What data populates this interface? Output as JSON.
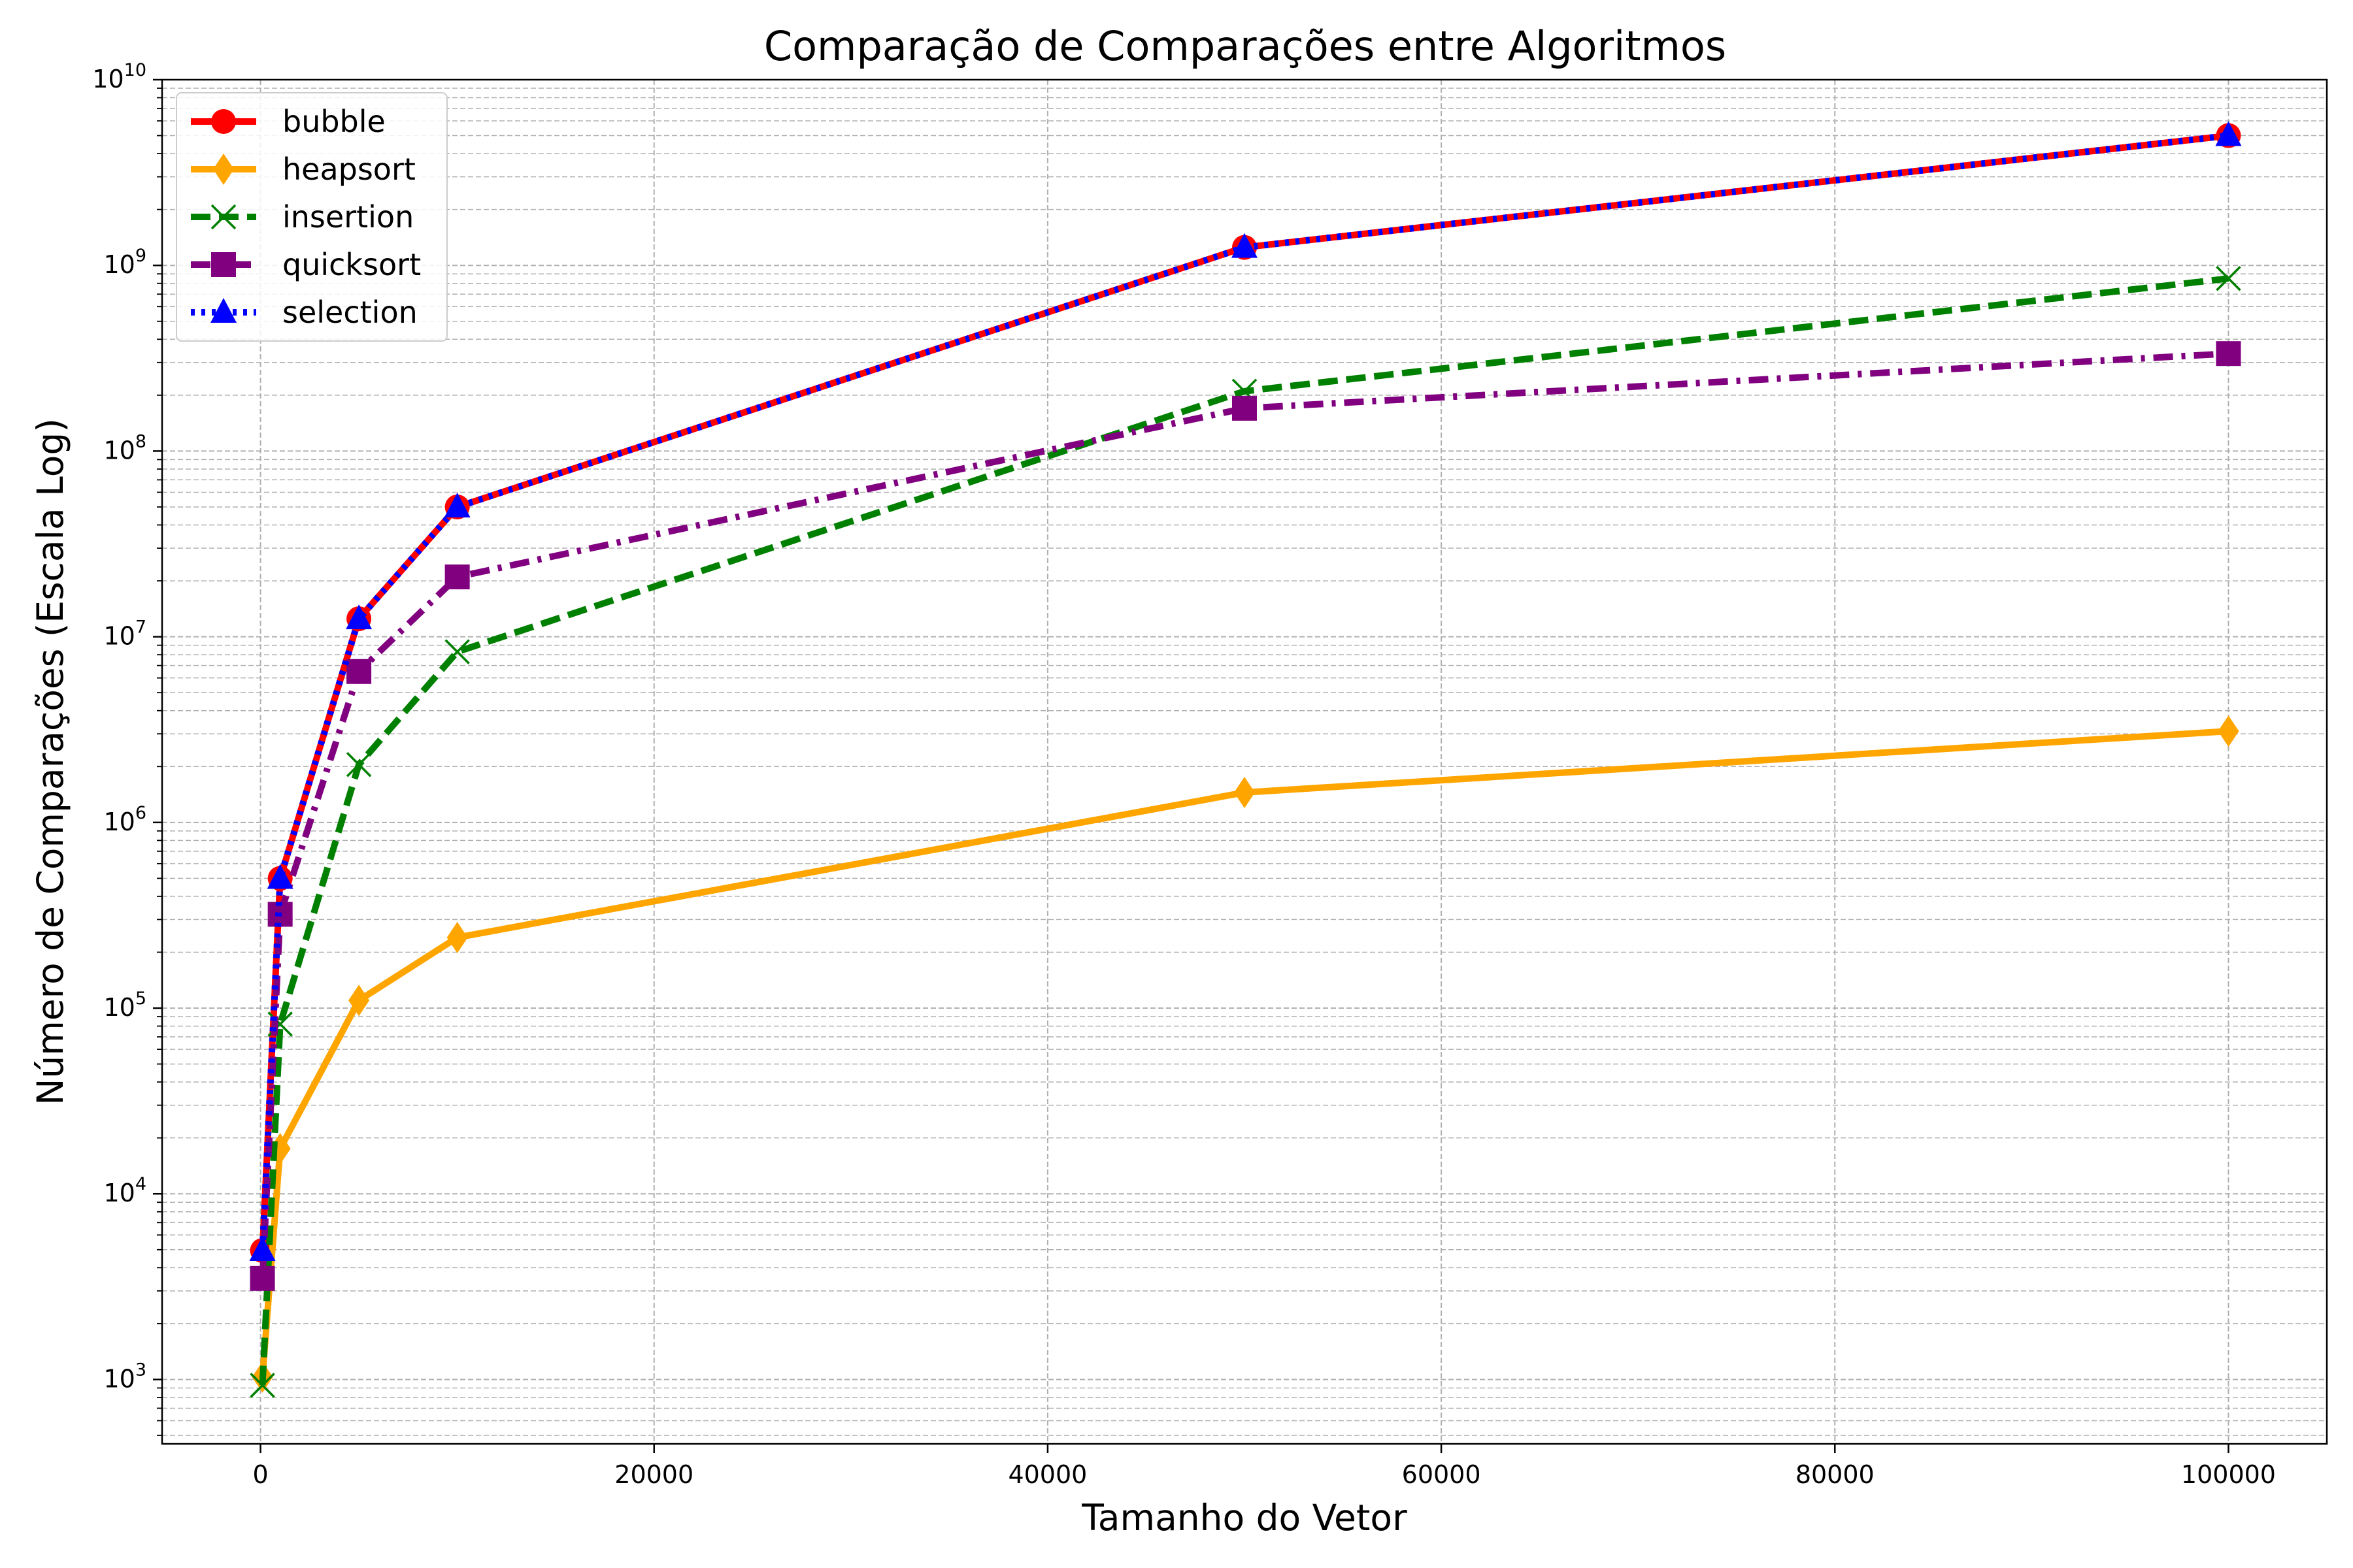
{
  "chart_data": {
    "type": "line",
    "title": "Comparação de Comparações entre Algoritmos",
    "xlabel": "Tamanho do Vetor",
    "ylabel": "Número de Comparações (Escala Log)",
    "x": [
      100,
      1000,
      5000,
      10000,
      50000,
      100000
    ],
    "xlim": [
      -5000,
      105000
    ],
    "ylim": [
      450,
      10000000000
    ],
    "yscale": "log",
    "x_ticks": [
      0,
      20000,
      40000,
      60000,
      80000,
      100000
    ],
    "x_tick_labels": [
      "0",
      "20000",
      "40000",
      "60000",
      "80000",
      "100000"
    ],
    "y_ticks": [
      1000,
      10000,
      100000,
      1000000,
      10000000,
      100000000,
      1000000000,
      10000000000
    ],
    "y_tick_base": "10",
    "y_tick_exponents": [
      "3",
      "4",
      "5",
      "6",
      "7",
      "8",
      "9",
      "10"
    ],
    "grid": true,
    "legend_position": "top-left",
    "series": [
      {
        "name": "bubble",
        "values": [
          4950,
          499500,
          12497500,
          49995000,
          1249975000,
          4999950000
        ],
        "color": "#ff0000",
        "linestyle": "solid",
        "marker": "circle"
      },
      {
        "name": "heapsort",
        "values": [
          1030,
          17500,
          110000,
          240000,
          1450000,
          3100000
        ],
        "color": "#ffa500",
        "linestyle": "solid",
        "marker": "diamond"
      },
      {
        "name": "insertion",
        "values": [
          930,
          82000,
          2050000,
          8300000,
          210000000,
          850000000
        ],
        "color": "#008000",
        "linestyle": "dashed",
        "marker": "x"
      },
      {
        "name": "quicksort",
        "values": [
          3500,
          320000,
          6500000,
          21000000,
          170000000,
          335000000
        ],
        "color": "#800080",
        "linestyle": "dashdot",
        "marker": "square"
      },
      {
        "name": "selection",
        "values": [
          4950,
          499500,
          12497500,
          49995000,
          1249975000,
          4999950000
        ],
        "color": "#0000ff",
        "linestyle": "dotted",
        "marker": "triangle"
      }
    ]
  }
}
